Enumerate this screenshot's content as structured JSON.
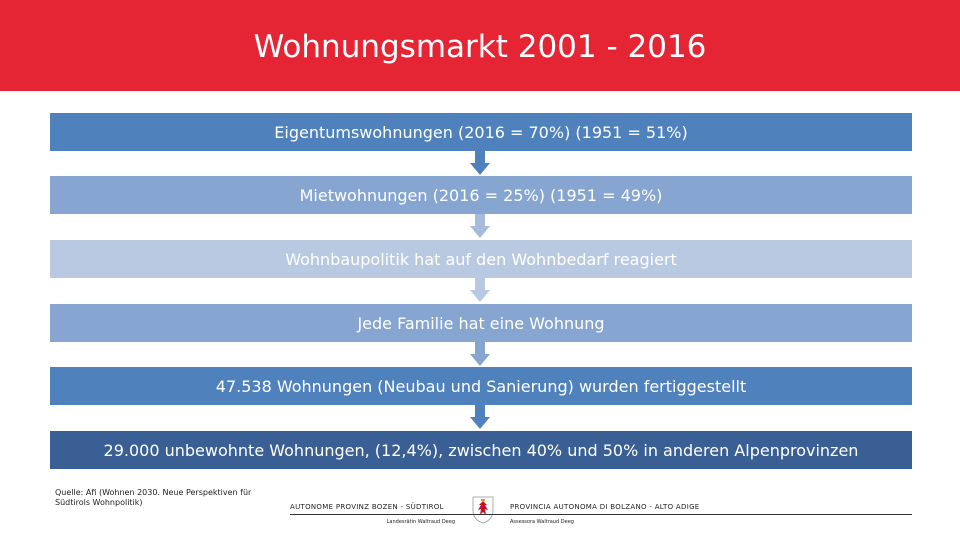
{
  "slide": {
    "title": "Wohnungsmarkt 2001 - 2016",
    "colors": {
      "header": "#e52534",
      "bar_dark": "#4f81bd",
      "bar_mid": "#86a5d0",
      "bar_light": "#b9c9e2",
      "bar_darkest": "#3a5f95"
    }
  },
  "steps": [
    {
      "label": "Eigentumswohnungen (2016 = 70%) (1951 = 51%)"
    },
    {
      "label": "Mietwohnungen (2016 = 25%) (1951 = 49%)"
    },
    {
      "label": "Wohnbaupolitik hat auf den Wohnbedarf reagiert"
    },
    {
      "label": "Jede Familie hat eine Wohnung"
    },
    {
      "label": "47.538 Wohnungen (Neubau und Sanierung) wurden fertiggestellt"
    },
    {
      "label": "29.000 unbewohnte Wohnungen, (12,4%), zwischen 40% und 50% in anderen Alpenprovinzen"
    }
  ],
  "footer": {
    "source": "Quelle: Afi (Wohnen 2030. Neue Perspektiven für Südtirols Wohnpolitik)",
    "left_org": "AUTONOME PROVINZ BOZEN - SÜDTIROL",
    "left_sub": "Landesrätin Waltraud Deeg",
    "right_org": "PROVINCIA AUTONOMA DI BOLZANO - ALTO ADIGE",
    "right_sub": "Assessora Waltraud Deeg",
    "crest_icon": "provincial-coat-of-arms-icon"
  }
}
